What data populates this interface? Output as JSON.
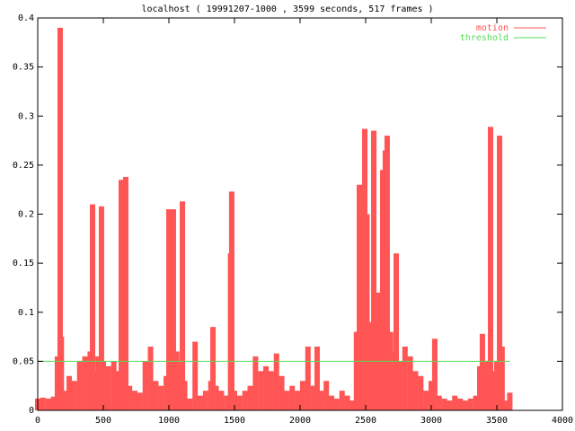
{
  "chart_data": {
    "type": "line",
    "title": "localhost ( 19991207-1000 , 3599 seconds, 517 frames )",
    "xlim": [
      0,
      4000
    ],
    "xticks": [
      0,
      500,
      1000,
      1500,
      2000,
      2500,
      3000,
      3500,
      4000
    ],
    "ylim": [
      0,
      0.4
    ],
    "yticks": [
      0,
      0.05,
      0.1,
      0.15,
      0.2,
      0.25,
      0.3,
      0.35,
      0.4
    ],
    "grid": false,
    "legend": "top-right",
    "series": [
      {
        "name": "motion",
        "color": "#ff5555",
        "style": "impulses",
        "x": [
          0,
          40,
          80,
          120,
          150,
          160,
          171,
          180,
          200,
          240,
          280,
          320,
          360,
          380,
          400,
          418,
          430,
          460,
          486,
          500,
          540,
          580,
          620,
          637,
          650,
          671,
          700,
          740,
          780,
          820,
          860,
          900,
          940,
          980,
          1000,
          1020,
          1034,
          1060,
          1080,
          1103,
          1120,
          1160,
          1200,
          1240,
          1280,
          1320,
          1336,
          1360,
          1400,
          1440,
          1470,
          1479,
          1500,
          1540,
          1580,
          1620,
          1660,
          1700,
          1740,
          1780,
          1820,
          1860,
          1900,
          1940,
          1980,
          2020,
          2060,
          2100,
          2130,
          2160,
          2200,
          2240,
          2280,
          2320,
          2360,
          2400,
          2430,
          2452,
          2470,
          2493,
          2510,
          2530,
          2562,
          2590,
          2610,
          2630,
          2650,
          2664,
          2690,
          2710,
          2733,
          2760,
          2800,
          2840,
          2880,
          2920,
          2960,
          3000,
          3027,
          3060,
          3100,
          3140,
          3180,
          3220,
          3260,
          3300,
          3340,
          3370,
          3390,
          3420,
          3452,
          3480,
          3500,
          3521,
          3540,
          3570,
          3599
        ],
        "values": [
          0.012,
          0.013,
          0.012,
          0.014,
          0.055,
          0.03,
          0.39,
          0.075,
          0.02,
          0.035,
          0.03,
          0.05,
          0.055,
          0.045,
          0.06,
          0.21,
          0.04,
          0.055,
          0.208,
          0.05,
          0.045,
          0.05,
          0.04,
          0.235,
          0.04,
          0.238,
          0.025,
          0.02,
          0.018,
          0.05,
          0.065,
          0.03,
          0.025,
          0.035,
          0.205,
          0.05,
          0.205,
          0.06,
          0.05,
          0.213,
          0.03,
          0.012,
          0.07,
          0.015,
          0.02,
          0.03,
          0.085,
          0.025,
          0.02,
          0.015,
          0.16,
          0.223,
          0.02,
          0.015,
          0.02,
          0.025,
          0.055,
          0.04,
          0.045,
          0.04,
          0.058,
          0.035,
          0.02,
          0.025,
          0.02,
          0.03,
          0.065,
          0.025,
          0.065,
          0.02,
          0.03,
          0.015,
          0.012,
          0.02,
          0.015,
          0.01,
          0.08,
          0.23,
          0.1,
          0.287,
          0.2,
          0.09,
          0.285,
          0.12,
          0.07,
          0.245,
          0.265,
          0.28,
          0.08,
          0.06,
          0.16,
          0.05,
          0.065,
          0.055,
          0.04,
          0.035,
          0.02,
          0.03,
          0.073,
          0.015,
          0.012,
          0.01,
          0.015,
          0.012,
          0.01,
          0.012,
          0.015,
          0.045,
          0.078,
          0.05,
          0.289,
          0.04,
          0.05,
          0.28,
          0.065,
          0.01,
          0.018
        ]
      },
      {
        "name": "threshold",
        "color": "#55dd55",
        "style": "lines",
        "x": [
          0,
          3599
        ],
        "values": [
          0.05,
          0.05
        ]
      }
    ]
  }
}
